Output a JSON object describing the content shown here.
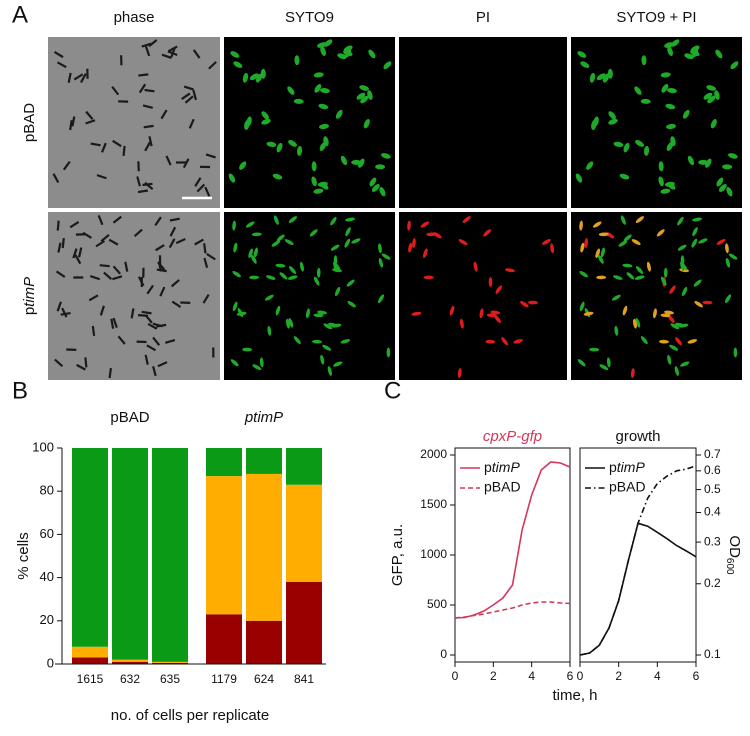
{
  "panel_a": {
    "label": "A",
    "columns": [
      "phase",
      "SYTO9",
      "PI",
      "SYTO9 + PI"
    ],
    "rows": [
      {
        "text": "pBAD"
      },
      {
        "text": "p",
        "italic": "timP"
      }
    ]
  },
  "chart_data": [
    {
      "type": "stacked-bar",
      "panel_label": "B",
      "ylabel": "% cells",
      "xlabel": "no. of cells per replicate",
      "groups": [
        {
          "label": "pBAD",
          "italic": false
        },
        {
          "label": "ptimP",
          "italic": true
        }
      ],
      "categories": [
        "1615",
        "632",
        "635",
        "1179",
        "624",
        "841"
      ],
      "series": [
        {
          "color": "#990000",
          "values": [
            3,
            1,
            0.5,
            23,
            20,
            38
          ]
        },
        {
          "color": "#ffad00",
          "values": [
            5,
            1,
            0.5,
            64,
            68,
            45
          ]
        },
        {
          "color": "#0a9a16",
          "values": [
            92,
            98,
            99,
            13,
            12,
            17
          ]
        }
      ],
      "ylim": [
        0,
        100
      ],
      "yticks": [
        0,
        20,
        40,
        60,
        80,
        100
      ]
    },
    {
      "type": "line",
      "panel_label": "C",
      "title": "cpxP-gfp",
      "title_color": "#d6365a",
      "title_italic": true,
      "ylabel": "GFP, a.u.",
      "xlabel": "time, h",
      "x": [
        0,
        0.5,
        1,
        1.5,
        2,
        2.5,
        3,
        3.5,
        4,
        4.5,
        5,
        5.5,
        6
      ],
      "series": [
        {
          "name": "ptimP",
          "italic_suffix": true,
          "color": "#d6365a",
          "dash": "solid",
          "values": [
            370,
            375,
            400,
            440,
            500,
            570,
            700,
            1250,
            1600,
            1850,
            1930,
            1920,
            1880
          ]
        },
        {
          "name": "pBAD",
          "italic_suffix": false,
          "color": "#d6365a",
          "dash": "dashed",
          "values": [
            370,
            380,
            395,
            410,
            430,
            450,
            470,
            500,
            520,
            530,
            530,
            520,
            515
          ]
        }
      ],
      "xlim": [
        0,
        6
      ],
      "xticks": [
        0,
        2,
        4,
        6
      ],
      "ylim": [
        0,
        2000
      ],
      "yticks": [
        0,
        500,
        1000,
        1500,
        2000
      ]
    },
    {
      "type": "line",
      "title": "growth",
      "title_color": "#111111",
      "title_italic": false,
      "ylabel": {
        "text": "OD",
        "subscript": "600"
      },
      "y_axis_side": "right",
      "log_y": true,
      "x": [
        0,
        0.5,
        1,
        1.5,
        2,
        2.5,
        3,
        3.5,
        4,
        4.5,
        5,
        5.5,
        6
      ],
      "series": [
        {
          "name": "ptimP",
          "italic_suffix": true,
          "color": "#111111",
          "dash": "solid",
          "values": [
            0.1,
            0.102,
            0.11,
            0.13,
            0.17,
            0.25,
            0.36,
            0.35,
            0.33,
            0.31,
            0.29,
            0.275,
            0.26
          ]
        },
        {
          "name": "pBAD",
          "italic_suffix": false,
          "color": "#111111",
          "dash": "dashdot",
          "values": [
            0.1,
            0.102,
            0.11,
            0.13,
            0.17,
            0.25,
            0.36,
            0.46,
            0.53,
            0.57,
            0.6,
            0.61,
            0.63
          ]
        }
      ],
      "xlim": [
        0,
        6
      ],
      "xticks": [
        0,
        2,
        4,
        6
      ],
      "ylim": [
        0.1,
        0.7
      ],
      "yticks": [
        0.1,
        0.2,
        0.3,
        0.4,
        0.5,
        0.6,
        0.7
      ]
    }
  ]
}
